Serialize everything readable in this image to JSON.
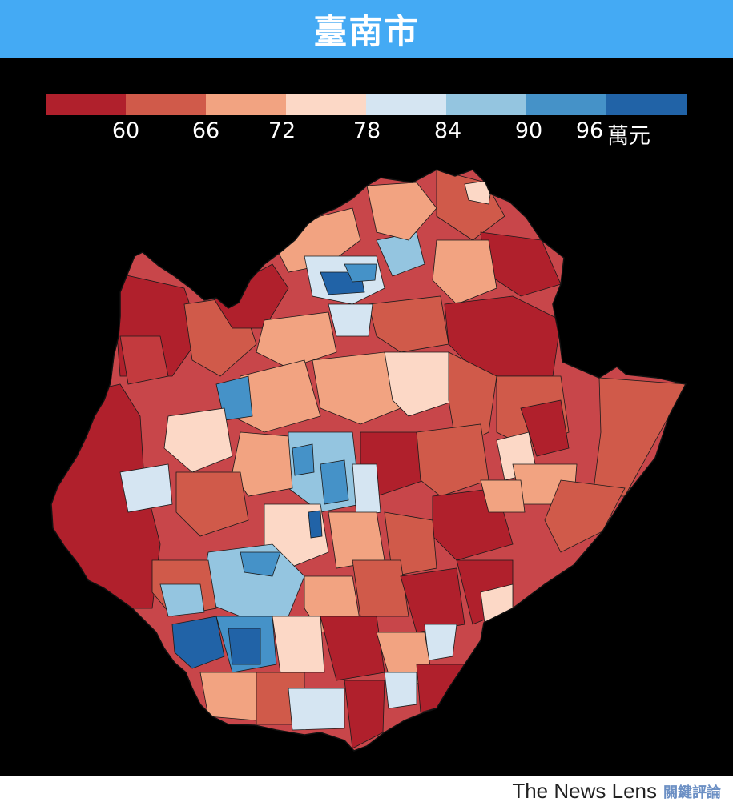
{
  "header": {
    "title": "臺南市"
  },
  "legend": {
    "colors": [
      "#b0202c",
      "#d05a4a",
      "#f2a381",
      "#fcd8c6",
      "#d5e5f2",
      "#94c5e0",
      "#4592c8",
      "#2163a7"
    ],
    "ticks": [
      "60",
      "66",
      "72",
      "78",
      "84",
      "90",
      "96"
    ],
    "unit": "萬元"
  },
  "map": {
    "region": "臺南市",
    "fill_palette": [
      "#b0202c",
      "#d05a4a",
      "#f2a381",
      "#fcd8c6",
      "#d5e5f2",
      "#94c5e0",
      "#4592c8",
      "#2163a7"
    ],
    "border_color": "#111111"
  },
  "footer": {
    "brand_en": "The News Lens",
    "brand_zh": "關鍵評論"
  }
}
